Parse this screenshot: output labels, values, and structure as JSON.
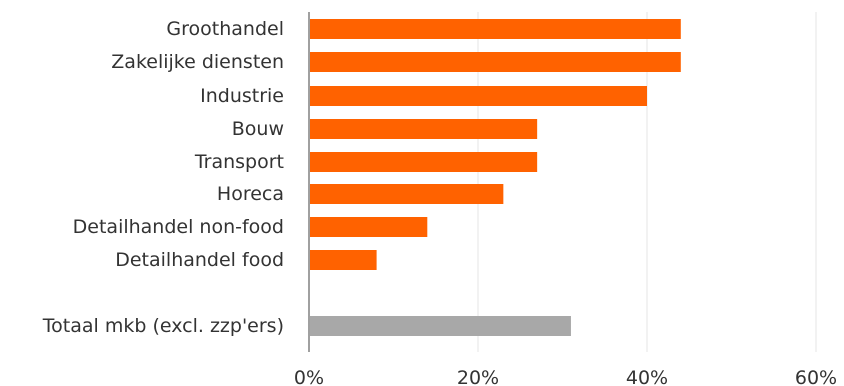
{
  "chart_data": {
    "type": "bar",
    "orientation": "horizontal",
    "categories": [
      "Groothandel",
      "Zakelijke diensten",
      "Industrie",
      "Bouw",
      "Transport",
      "Horeca",
      "Detailhandel non-food",
      "Detailhandel food",
      "Totaal mkb (excl. zzp'ers)"
    ],
    "values": [
      44,
      44,
      40,
      27,
      27,
      23,
      14,
      8,
      31
    ],
    "bar_colors": [
      "#FF6200",
      "#FF6200",
      "#FF6200",
      "#FF6200",
      "#FF6200",
      "#FF6200",
      "#FF6200",
      "#FF6200",
      "#A8A8A8"
    ],
    "xlim": [
      0,
      60
    ],
    "x_ticks": [
      "0%",
      "20%",
      "40%",
      "60%"
    ],
    "x_tick_values": [
      0,
      20,
      40,
      60
    ],
    "grid": "vertical",
    "title": "",
    "xlabel": "",
    "ylabel": ""
  },
  "colors": {
    "accent": "#FF6200",
    "total": "#A8A8A8",
    "grid": "#E6E6E6",
    "axis": "#A0A0A0",
    "text": "#333333"
  }
}
